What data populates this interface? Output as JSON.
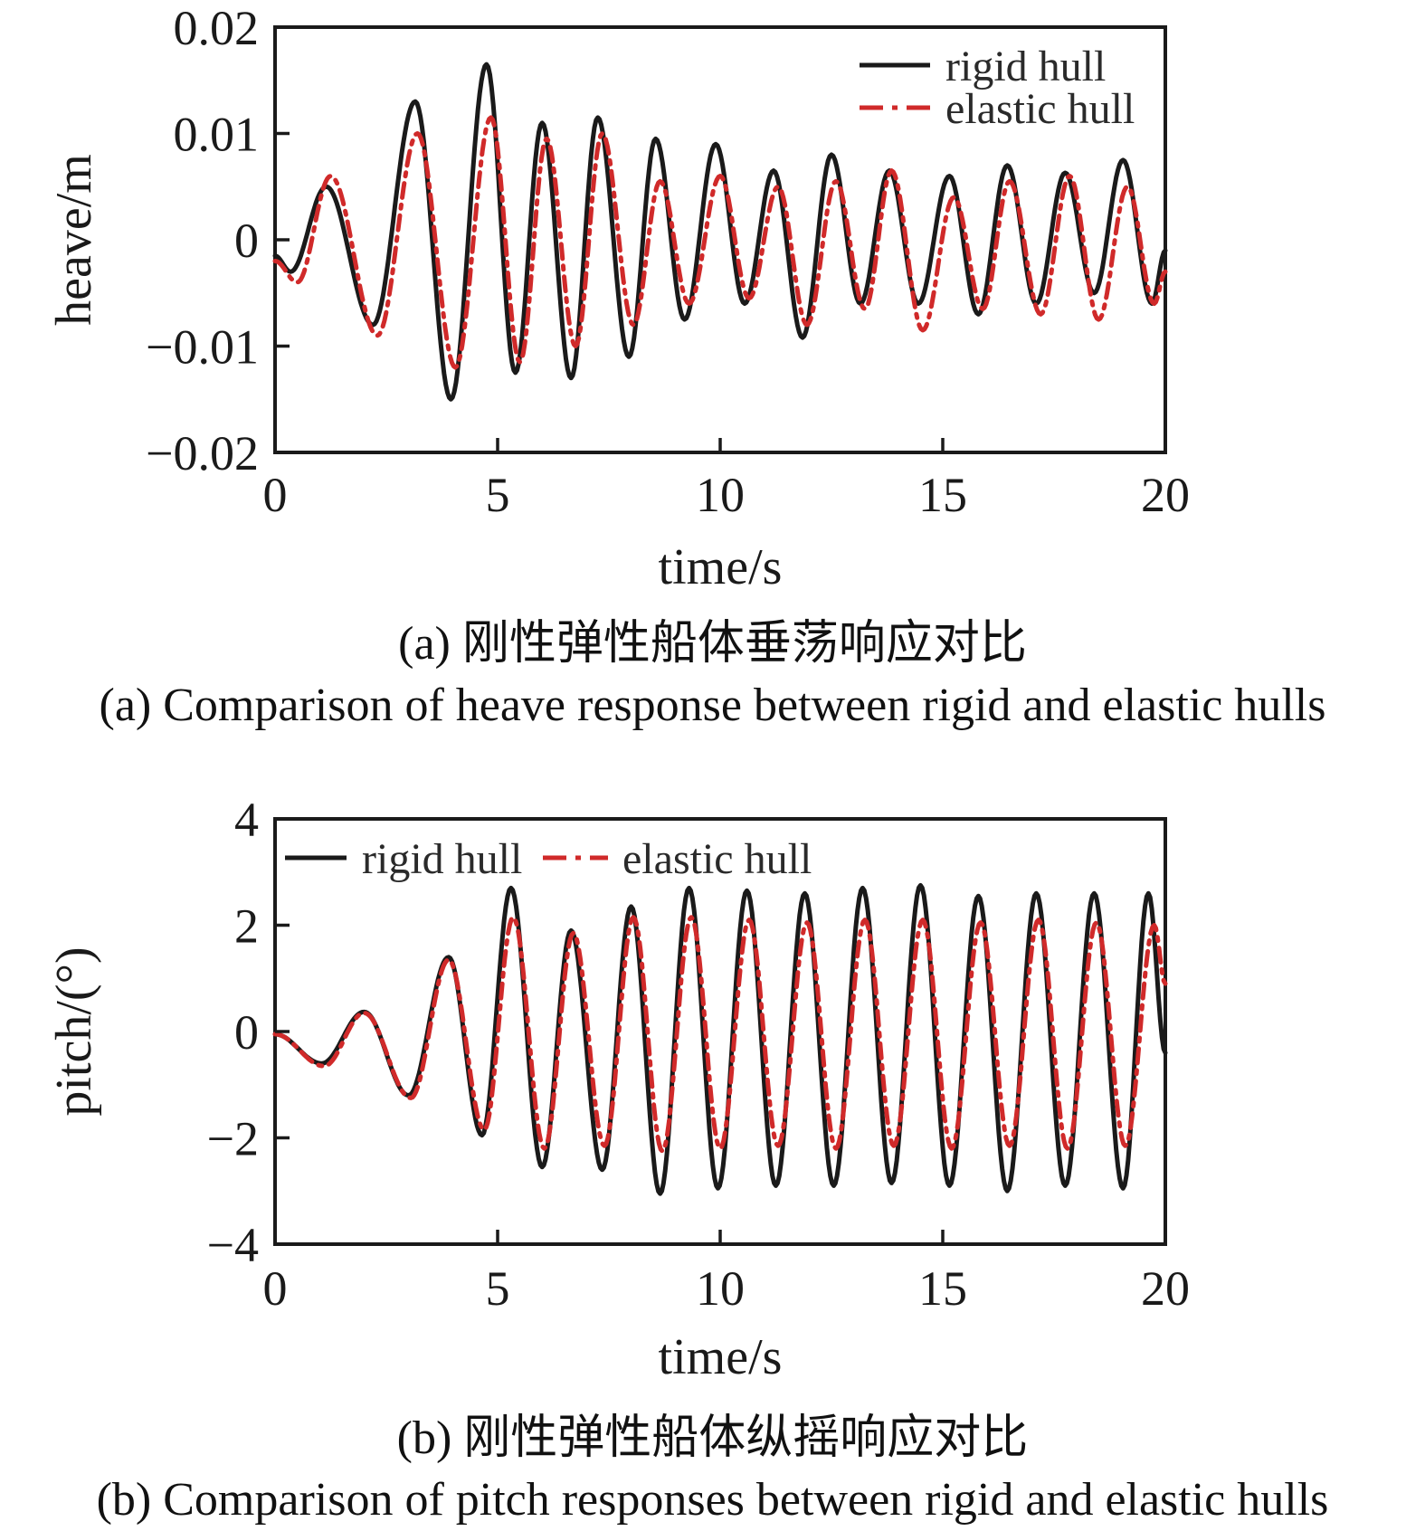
{
  "figure": {
    "background": "#ffffff",
    "axis_color": "#1a1a1a",
    "rigid_color": "#1a1a1a",
    "elastic_color": "#d02a2a"
  },
  "captions": {
    "a_zh": "(a) 刚性弹性船体垂荡响应对比",
    "a_en": "(a) Comparison of heave response between rigid and elastic hulls",
    "b_zh": "(b) 刚性弹性船体纵摇响应对比",
    "b_en": "(b) Comparison of pitch responses between rigid and elastic hulls"
  },
  "chart_data": [
    {
      "type": "line",
      "title": "",
      "xlabel": "time/s",
      "ylabel": "heave/m",
      "xlim": [
        0,
        20
      ],
      "ylim": [
        -0.02,
        0.02
      ],
      "xticks": [
        0,
        5,
        10,
        15,
        20
      ],
      "yticks": [
        0.02,
        0.01,
        0,
        -0.01,
        -0.02
      ],
      "xtick_labels": [
        "0",
        "5",
        "10",
        "15",
        "20"
      ],
      "ytick_labels": [
        "0.02",
        "0.01",
        "0",
        "−0.01",
        "−0.02"
      ],
      "grid": false,
      "legend": {
        "position": "top-right",
        "entries": [
          "rigid hull",
          "elastic hull"
        ]
      },
      "points_note": "extrema are [time_s, value] peaks/troughs read from the curve",
      "series": [
        {
          "name": "rigid hull",
          "color": "#1a1a1a",
          "style": "solid",
          "extrema": [
            [
              0,
              -0.0015
            ],
            [
              0.35,
              -0.003
            ],
            [
              1.15,
              0.005
            ],
            [
              2.2,
              -0.008
            ],
            [
              3.15,
              0.013
            ],
            [
              3.95,
              -0.015
            ],
            [
              4.75,
              0.0165
            ],
            [
              5.4,
              -0.0125
            ],
            [
              6.0,
              0.011
            ],
            [
              6.65,
              -0.013
            ],
            [
              7.25,
              0.0115
            ],
            [
              7.95,
              -0.011
            ],
            [
              8.55,
              0.0095
            ],
            [
              9.2,
              -0.0075
            ],
            [
              9.9,
              0.009
            ],
            [
              10.55,
              -0.006
            ],
            [
              11.2,
              0.0065
            ],
            [
              11.85,
              -0.0092
            ],
            [
              12.5,
              0.008
            ],
            [
              13.15,
              -0.006
            ],
            [
              13.8,
              0.0065
            ],
            [
              14.45,
              -0.006
            ],
            [
              15.15,
              0.006
            ],
            [
              15.8,
              -0.007
            ],
            [
              16.45,
              0.007
            ],
            [
              17.1,
              -0.006
            ],
            [
              17.75,
              0.0063
            ],
            [
              18.4,
              -0.005
            ],
            [
              19.05,
              0.0075
            ],
            [
              19.7,
              -0.006
            ],
            [
              20,
              -0.001
            ]
          ]
        },
        {
          "name": "elastic hull",
          "color": "#d02a2a",
          "style": "dash-dot",
          "dash": "16 8 4 8",
          "extrema": [
            [
              0,
              -0.002
            ],
            [
              0.5,
              -0.004
            ],
            [
              1.25,
              0.006
            ],
            [
              2.3,
              -0.009
            ],
            [
              3.2,
              0.01
            ],
            [
              4.05,
              -0.012
            ],
            [
              4.85,
              0.0115
            ],
            [
              5.5,
              -0.0115
            ],
            [
              6.1,
              0.0095
            ],
            [
              6.75,
              -0.01
            ],
            [
              7.35,
              0.01
            ],
            [
              8.05,
              -0.008
            ],
            [
              8.65,
              0.0055
            ],
            [
              9.3,
              -0.006
            ],
            [
              10.0,
              0.006
            ],
            [
              10.65,
              -0.0055
            ],
            [
              11.3,
              0.005
            ],
            [
              11.95,
              -0.008
            ],
            [
              12.6,
              0.0055
            ],
            [
              13.25,
              -0.0065
            ],
            [
              13.85,
              0.0065
            ],
            [
              14.55,
              -0.0085
            ],
            [
              15.25,
              0.004
            ],
            [
              15.9,
              -0.0065
            ],
            [
              16.5,
              0.0055
            ],
            [
              17.2,
              -0.007
            ],
            [
              17.85,
              0.006
            ],
            [
              18.5,
              -0.0075
            ],
            [
              19.15,
              0.005
            ],
            [
              19.75,
              -0.006
            ],
            [
              20,
              -0.003
            ]
          ]
        }
      ]
    },
    {
      "type": "line",
      "title": "",
      "xlabel": "time/s",
      "ylabel": "pitch/(°)",
      "xlim": [
        0,
        20
      ],
      "ylim": [
        -4,
        4
      ],
      "xticks": [
        0,
        5,
        10,
        15,
        20
      ],
      "yticks": [
        4,
        2,
        0,
        -2,
        -4
      ],
      "xtick_labels": [
        "0",
        "5",
        "10",
        "15",
        "20"
      ],
      "ytick_labels": [
        "4",
        "2",
        "0",
        "−2",
        "−4"
      ],
      "grid": false,
      "legend": {
        "position": "top-left-row",
        "entries": [
          "rigid hull",
          "elastic hull"
        ]
      },
      "points_note": "extrema are [time_s, value] peaks/troughs read from the curve",
      "series": [
        {
          "name": "rigid hull",
          "color": "#1a1a1a",
          "style": "solid",
          "extrema": [
            [
              0,
              -0.05
            ],
            [
              1.05,
              -0.6
            ],
            [
              2.0,
              0.37
            ],
            [
              3.0,
              -1.2
            ],
            [
              3.9,
              1.4
            ],
            [
              4.65,
              -1.95
            ],
            [
              5.3,
              2.7
            ],
            [
              6.0,
              -2.55
            ],
            [
              6.65,
              1.9
            ],
            [
              7.35,
              -2.6
            ],
            [
              8.0,
              2.35
            ],
            [
              8.65,
              -3.05
            ],
            [
              9.3,
              2.7
            ],
            [
              9.95,
              -2.95
            ],
            [
              10.6,
              2.65
            ],
            [
              11.25,
              -2.9
            ],
            [
              11.9,
              2.6
            ],
            [
              12.55,
              -2.9
            ],
            [
              13.2,
              2.7
            ],
            [
              13.85,
              -2.85
            ],
            [
              14.5,
              2.75
            ],
            [
              15.15,
              -2.9
            ],
            [
              15.8,
              2.55
            ],
            [
              16.45,
              -3.0
            ],
            [
              17.1,
              2.6
            ],
            [
              17.75,
              -2.9
            ],
            [
              18.4,
              2.6
            ],
            [
              19.05,
              -2.95
            ],
            [
              19.62,
              2.6
            ],
            [
              20,
              -0.4
            ]
          ]
        },
        {
          "name": "elastic hull",
          "color": "#d02a2a",
          "style": "dash-dot",
          "dash": "16 8 4 8",
          "extrema": [
            [
              0,
              -0.05
            ],
            [
              1.1,
              -0.65
            ],
            [
              2.0,
              0.35
            ],
            [
              3.05,
              -1.25
            ],
            [
              3.9,
              1.35
            ],
            [
              4.7,
              -1.85
            ],
            [
              5.35,
              2.15
            ],
            [
              6.05,
              -2.2
            ],
            [
              6.7,
              1.85
            ],
            [
              7.4,
              -2.15
            ],
            [
              8.05,
              2.15
            ],
            [
              8.7,
              -2.25
            ],
            [
              9.35,
              2.15
            ],
            [
              10.0,
              -2.2
            ],
            [
              10.65,
              2.1
            ],
            [
              11.3,
              -2.15
            ],
            [
              11.95,
              2.05
            ],
            [
              12.6,
              -2.2
            ],
            [
              13.25,
              2.1
            ],
            [
              13.9,
              -2.15
            ],
            [
              14.55,
              2.1
            ],
            [
              15.2,
              -2.2
            ],
            [
              15.85,
              2.05
            ],
            [
              16.5,
              -2.15
            ],
            [
              17.15,
              2.1
            ],
            [
              17.8,
              -2.2
            ],
            [
              18.45,
              2.05
            ],
            [
              19.1,
              -2.15
            ],
            [
              19.75,
              2.0
            ],
            [
              20,
              0.9
            ]
          ]
        }
      ]
    }
  ]
}
